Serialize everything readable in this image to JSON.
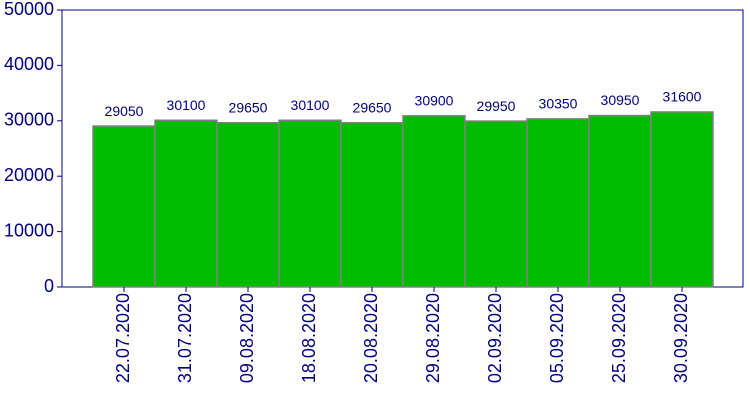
{
  "chart_data": {
    "type": "bar",
    "categories": [
      "22.07.2020",
      "31.07.2020",
      "09.08.2020",
      "18.08.2020",
      "20.08.2020",
      "29.08.2020",
      "02.09.2020",
      "05.09.2020",
      "25.09.2020",
      "30.09.2020"
    ],
    "values": [
      29050,
      30100,
      29650,
      30100,
      29650,
      30900,
      29950,
      30350,
      30950,
      31600
    ],
    "color": "#00bb00",
    "ylim": [
      0,
      50000
    ],
    "yticks": [
      0,
      10000,
      20000,
      30000,
      40000,
      50000
    ],
    "grid": false
  }
}
